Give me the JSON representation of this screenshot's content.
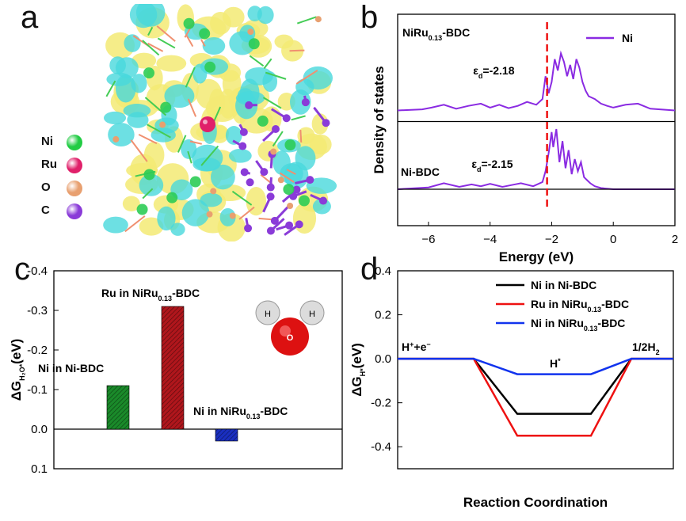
{
  "panels": {
    "a": {
      "letter": "a",
      "legend": [
        {
          "label": "Ni",
          "color": "#22cc44"
        },
        {
          "label": "Ru",
          "color": "#e0206a"
        },
        {
          "label": "O",
          "color": "#e8a070"
        },
        {
          "label": "C",
          "color": "#8a3bd8"
        }
      ],
      "isosurface_colors": {
        "yellow": "#f3ea74",
        "cyan": "#49d8dc"
      }
    },
    "b": {
      "letter": "b"
    },
    "c": {
      "letter": "c"
    },
    "d": {
      "letter": "d"
    }
  },
  "chart_data": [
    {
      "type": "line",
      "panel": "b",
      "title": "",
      "xlabel": "Energy (eV)",
      "ylabel": "Density of states",
      "xlim": [
        -7,
        2
      ],
      "xticks": [
        -6,
        -4,
        -2,
        0,
        2
      ],
      "series_color": "#8a2be2",
      "legend": "Ni",
      "vline_x": -2.15,
      "series": [
        {
          "name": "NiRu0.13-BDC",
          "label_main": "NiRu",
          "label_sub": "0.13",
          "label_tail": "-BDC",
          "eps_symbol": "ε",
          "eps_sub": "d",
          "eps_value": "=-2.18",
          "x": [
            -7,
            -6.2,
            -5.9,
            -5.5,
            -5.1,
            -4.7,
            -4.3,
            -4.0,
            -3.7,
            -3.4,
            -3.1,
            -2.8,
            -2.5,
            -2.3,
            -2.2,
            -2.1,
            -2.0,
            -1.9,
            -1.8,
            -1.7,
            -1.6,
            -1.5,
            -1.4,
            -1.3,
            -1.2,
            -1.1,
            -1.0,
            -0.9,
            -0.8,
            -0.6,
            -0.4,
            -0.2,
            0,
            0.4,
            0.8,
            1.2,
            2
          ],
          "y": [
            0,
            0.02,
            0.05,
            0.1,
            0.03,
            0.08,
            0.12,
            0.05,
            0.1,
            0.04,
            0.08,
            0.15,
            0.1,
            0.2,
            0.6,
            0.3,
            0.5,
            0.9,
            0.7,
            1.0,
            0.85,
            0.6,
            0.8,
            0.55,
            0.9,
            0.75,
            0.5,
            0.35,
            0.25,
            0.2,
            0.12,
            0.08,
            0.05,
            0.1,
            0.12,
            0.03,
            0
          ]
        },
        {
          "name": "Ni-BDC",
          "label_main": "Ni-BDC",
          "eps_symbol": "ε",
          "eps_sub": "d",
          "eps_value": "=-2.15",
          "x": [
            -7,
            -6.0,
            -5.5,
            -5.0,
            -4.6,
            -4.3,
            -4.0,
            -3.6,
            -3.3,
            -3.0,
            -2.6,
            -2.3,
            -2.2,
            -2.1,
            -2.0,
            -1.95,
            -1.85,
            -1.75,
            -1.65,
            -1.55,
            -1.45,
            -1.35,
            -1.25,
            -1.15,
            -1.05,
            -0.95,
            -0.85,
            -0.75,
            -0.6,
            -0.4,
            0,
            2
          ],
          "y": [
            0,
            0.03,
            0.1,
            0.04,
            0.08,
            0.05,
            0.09,
            0.04,
            0.07,
            0.1,
            0.05,
            0.12,
            0.3,
            0.6,
            0.95,
            0.7,
            1.0,
            0.45,
            0.8,
            0.35,
            0.65,
            0.25,
            0.5,
            0.3,
            0.45,
            0.2,
            0.15,
            0.1,
            0.05,
            0.02,
            0.0,
            0
          ]
        }
      ]
    },
    {
      "type": "bar",
      "panel": "c",
      "ylabel_main": "ΔG",
      "ylabel_sub": "H₂O*",
      "ylabel_tail": "(eV)",
      "ylim": [
        0.1,
        -0.4
      ],
      "yticks": [
        0.1,
        0.0,
        -0.1,
        -0.2,
        -0.3,
        -0.4
      ],
      "ytick_labels": [
        "0.1",
        "0.0",
        "-0.1",
        "-0.2",
        "-0.3",
        "-0.4"
      ],
      "categories": [
        "Ni in Ni-BDC",
        "Ru in NiRu0.13-BDC",
        "Ni in NiRu0.13-BDC"
      ],
      "values": [
        -0.11,
        -0.31,
        0.03
      ],
      "colors": [
        "#1a8a2a",
        "#b0161c",
        "#1a2fc0"
      ],
      "bar_labels": [
        {
          "main": "Ni in Ni-BDC",
          "sub": "",
          "tail": ""
        },
        {
          "main": "Ru in NiRu",
          "sub": "0.13",
          "tail": "-BDC"
        },
        {
          "main": "Ni in NiRu",
          "sub": "0.13",
          "tail": "-BDC"
        }
      ],
      "molecule": {
        "h_label": "H",
        "o_label": "O"
      }
    },
    {
      "type": "line",
      "panel": "d",
      "xlabel": "Reaction Coordination",
      "ylabel_main": "ΔG",
      "ylabel_sub": "H*",
      "ylabel_tail": "(eV)",
      "ylim": [
        -0.5,
        0.4
      ],
      "yticks": [
        0.4,
        0.2,
        0.0,
        -0.2,
        -0.4
      ],
      "ytick_labels": [
        "0.4",
        "0.2",
        "0.0",
        "-0.2",
        "-0.4"
      ],
      "state_labels": {
        "initial": "H⁺+e⁻",
        "middle": "H*",
        "final": "1/2H₂"
      },
      "series": [
        {
          "name": "Ni in Ni-BDC",
          "label_main": "Ni in Ni-BDC",
          "label_sub": "",
          "label_tail": "",
          "color": "#000000",
          "x": [
            0,
            1,
            2,
            3,
            4,
            5
          ],
          "y": [
            0,
            0,
            -0.25,
            -0.25,
            0,
            0
          ]
        },
        {
          "name": "Ru in NiRu0.13-BDC",
          "label_main": "Ru in NiRu",
          "label_sub": "0.13",
          "label_tail": "-BDC",
          "color": "#ee1111",
          "x": [
            0,
            1,
            2,
            3,
            4,
            5
          ],
          "y": [
            0,
            0,
            -0.35,
            -0.35,
            0,
            0
          ]
        },
        {
          "name": "Ni in NiRu0.13-BDC",
          "label_main": "Ni in NiRu",
          "label_sub": "0.13",
          "label_tail": "-BDC",
          "color": "#1133ee",
          "x": [
            0,
            1,
            2,
            3,
            4,
            5
          ],
          "y": [
            0,
            0,
            -0.07,
            -0.07,
            0,
            0
          ]
        }
      ]
    }
  ]
}
